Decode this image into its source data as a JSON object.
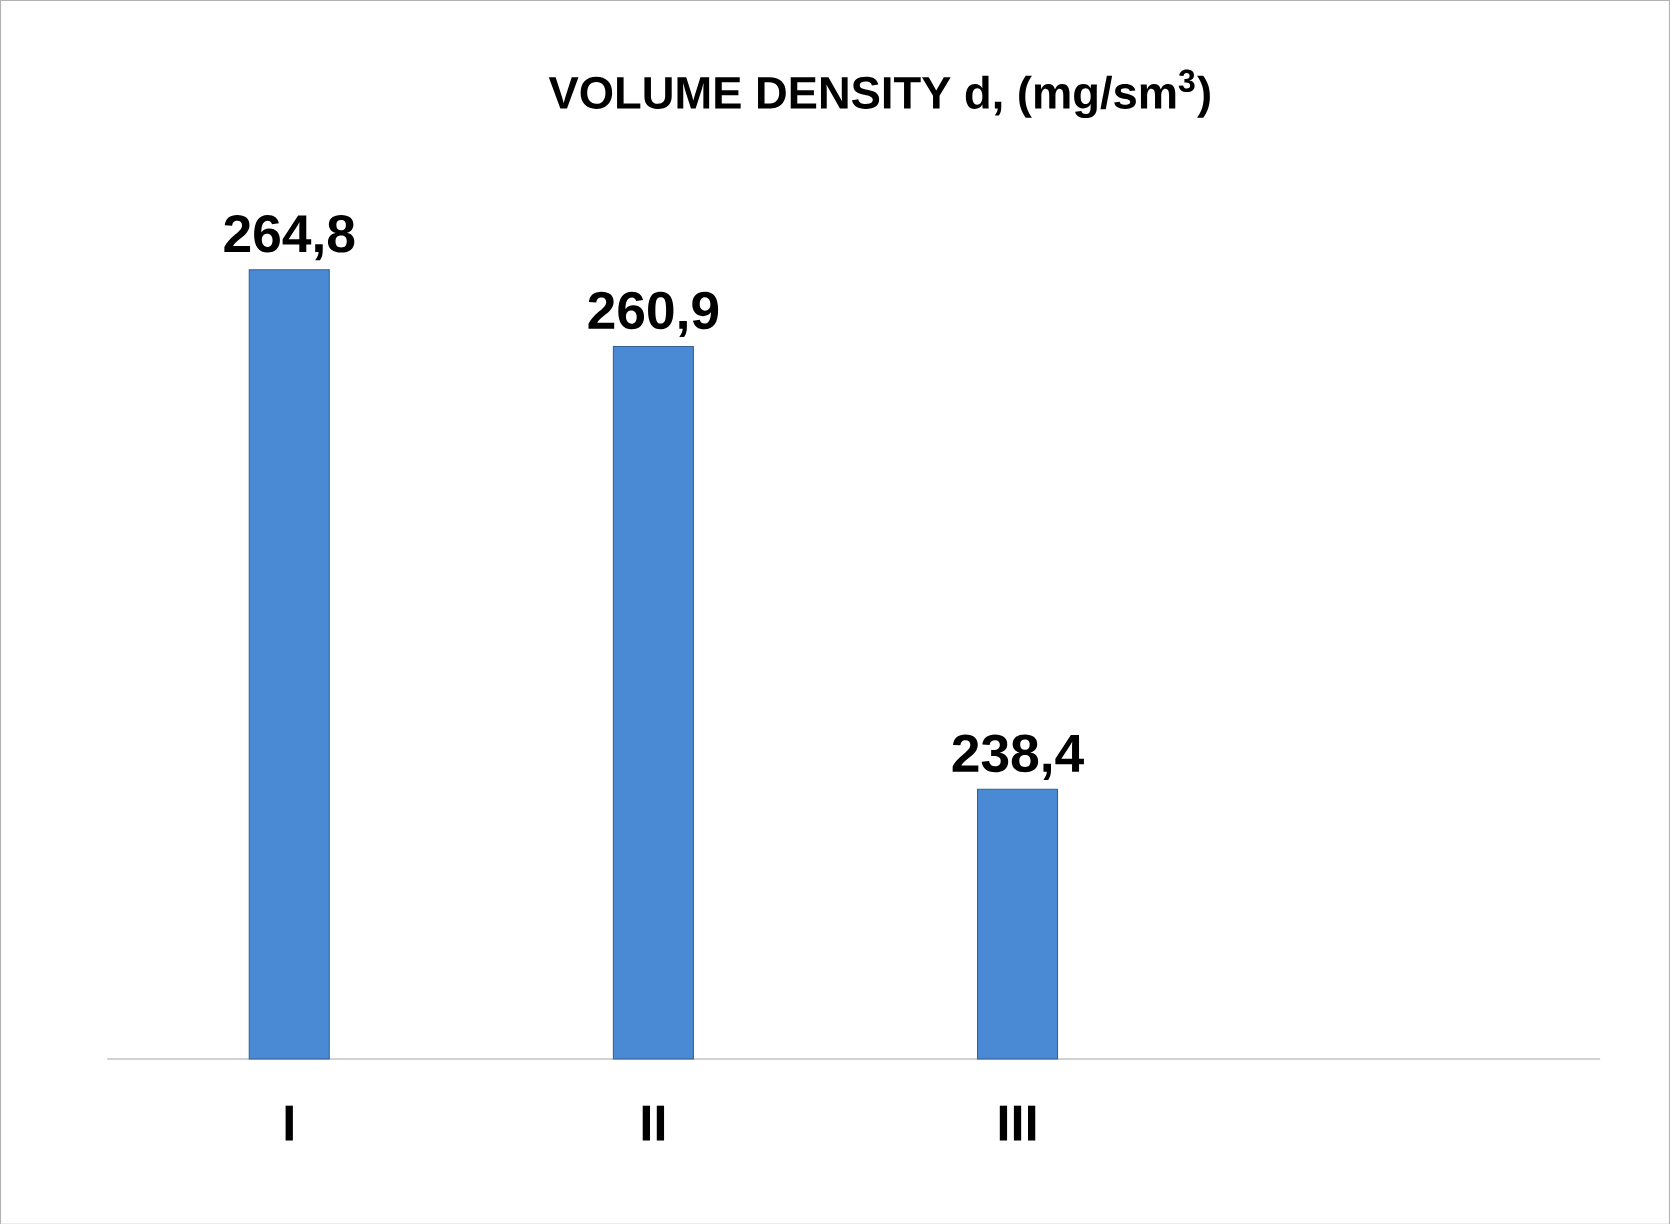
{
  "chart_data": {
    "type": "bar",
    "title": "VOLUME DENSITY d, (mg/sm$^{3}$)",
    "categories": [
      "I",
      "II",
      "III"
    ],
    "values": [
      264.8,
      260.9,
      238.4
    ],
    "value_labels": [
      "264,8",
      "260,9",
      "238,4"
    ],
    "color": "#4a8ad4",
    "ylim": [
      224.7,
      264.8
    ],
    "tick_labels": "x",
    "grid": false
  }
}
